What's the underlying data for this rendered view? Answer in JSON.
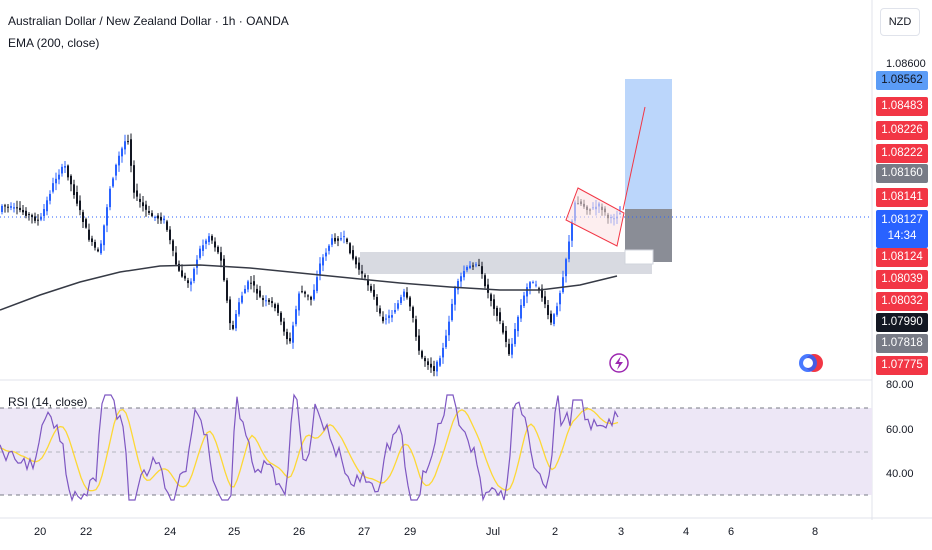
{
  "header": {
    "title": "Australian Dollar / New Zealand Dollar · 1h · OANDA",
    "indicator": "EMA (200, close)"
  },
  "currency_button": "NZD",
  "price_scale": {
    "top_label": "1.08600",
    "tags": [
      {
        "label": "1.08562",
        "color": "#5b9cf6",
        "text_color": "#131722"
      },
      {
        "label": "1.08483",
        "color": "#f23645"
      },
      {
        "label": "1.08226",
        "color": "#f23645"
      },
      {
        "label": "1.08222",
        "color": "#f23645"
      },
      {
        "label": "1.08160",
        "color": "#787b86"
      },
      {
        "label": "1.08141",
        "color": "#f23645"
      },
      {
        "label": "1.08127",
        "color": "#2962ff",
        "sub": "14:34"
      },
      {
        "label": "1.08124",
        "color": "#f23645"
      },
      {
        "label": "1.08039",
        "color": "#f23645"
      },
      {
        "label": "1.08032",
        "color": "#f23645"
      },
      {
        "label": "1.07990",
        "color": "#131722"
      },
      {
        "label": "1.07818",
        "color": "#787b86"
      },
      {
        "label": "1.07775",
        "color": "#f23645"
      }
    ]
  },
  "rsi": {
    "label": "RSI (14, close)",
    "levels": [
      "80.00",
      "60.00",
      "40.00"
    ]
  },
  "time_axis": [
    "20",
    "22",
    "24",
    "25",
    "26",
    "27",
    "29",
    "Jul",
    "2",
    "3",
    "4",
    "6",
    "8"
  ],
  "colors": {
    "up": "#2962ff",
    "down": "#131722",
    "ema": "#363a45",
    "rsi_line": "#7e57c2",
    "rsi_ma": "#fdd835",
    "rsi_band": "#ede7f6",
    "target": "#bbd6fb",
    "stop": "#8a8d96",
    "zone": "#d1d4dc",
    "flag": "#f23645"
  }
}
